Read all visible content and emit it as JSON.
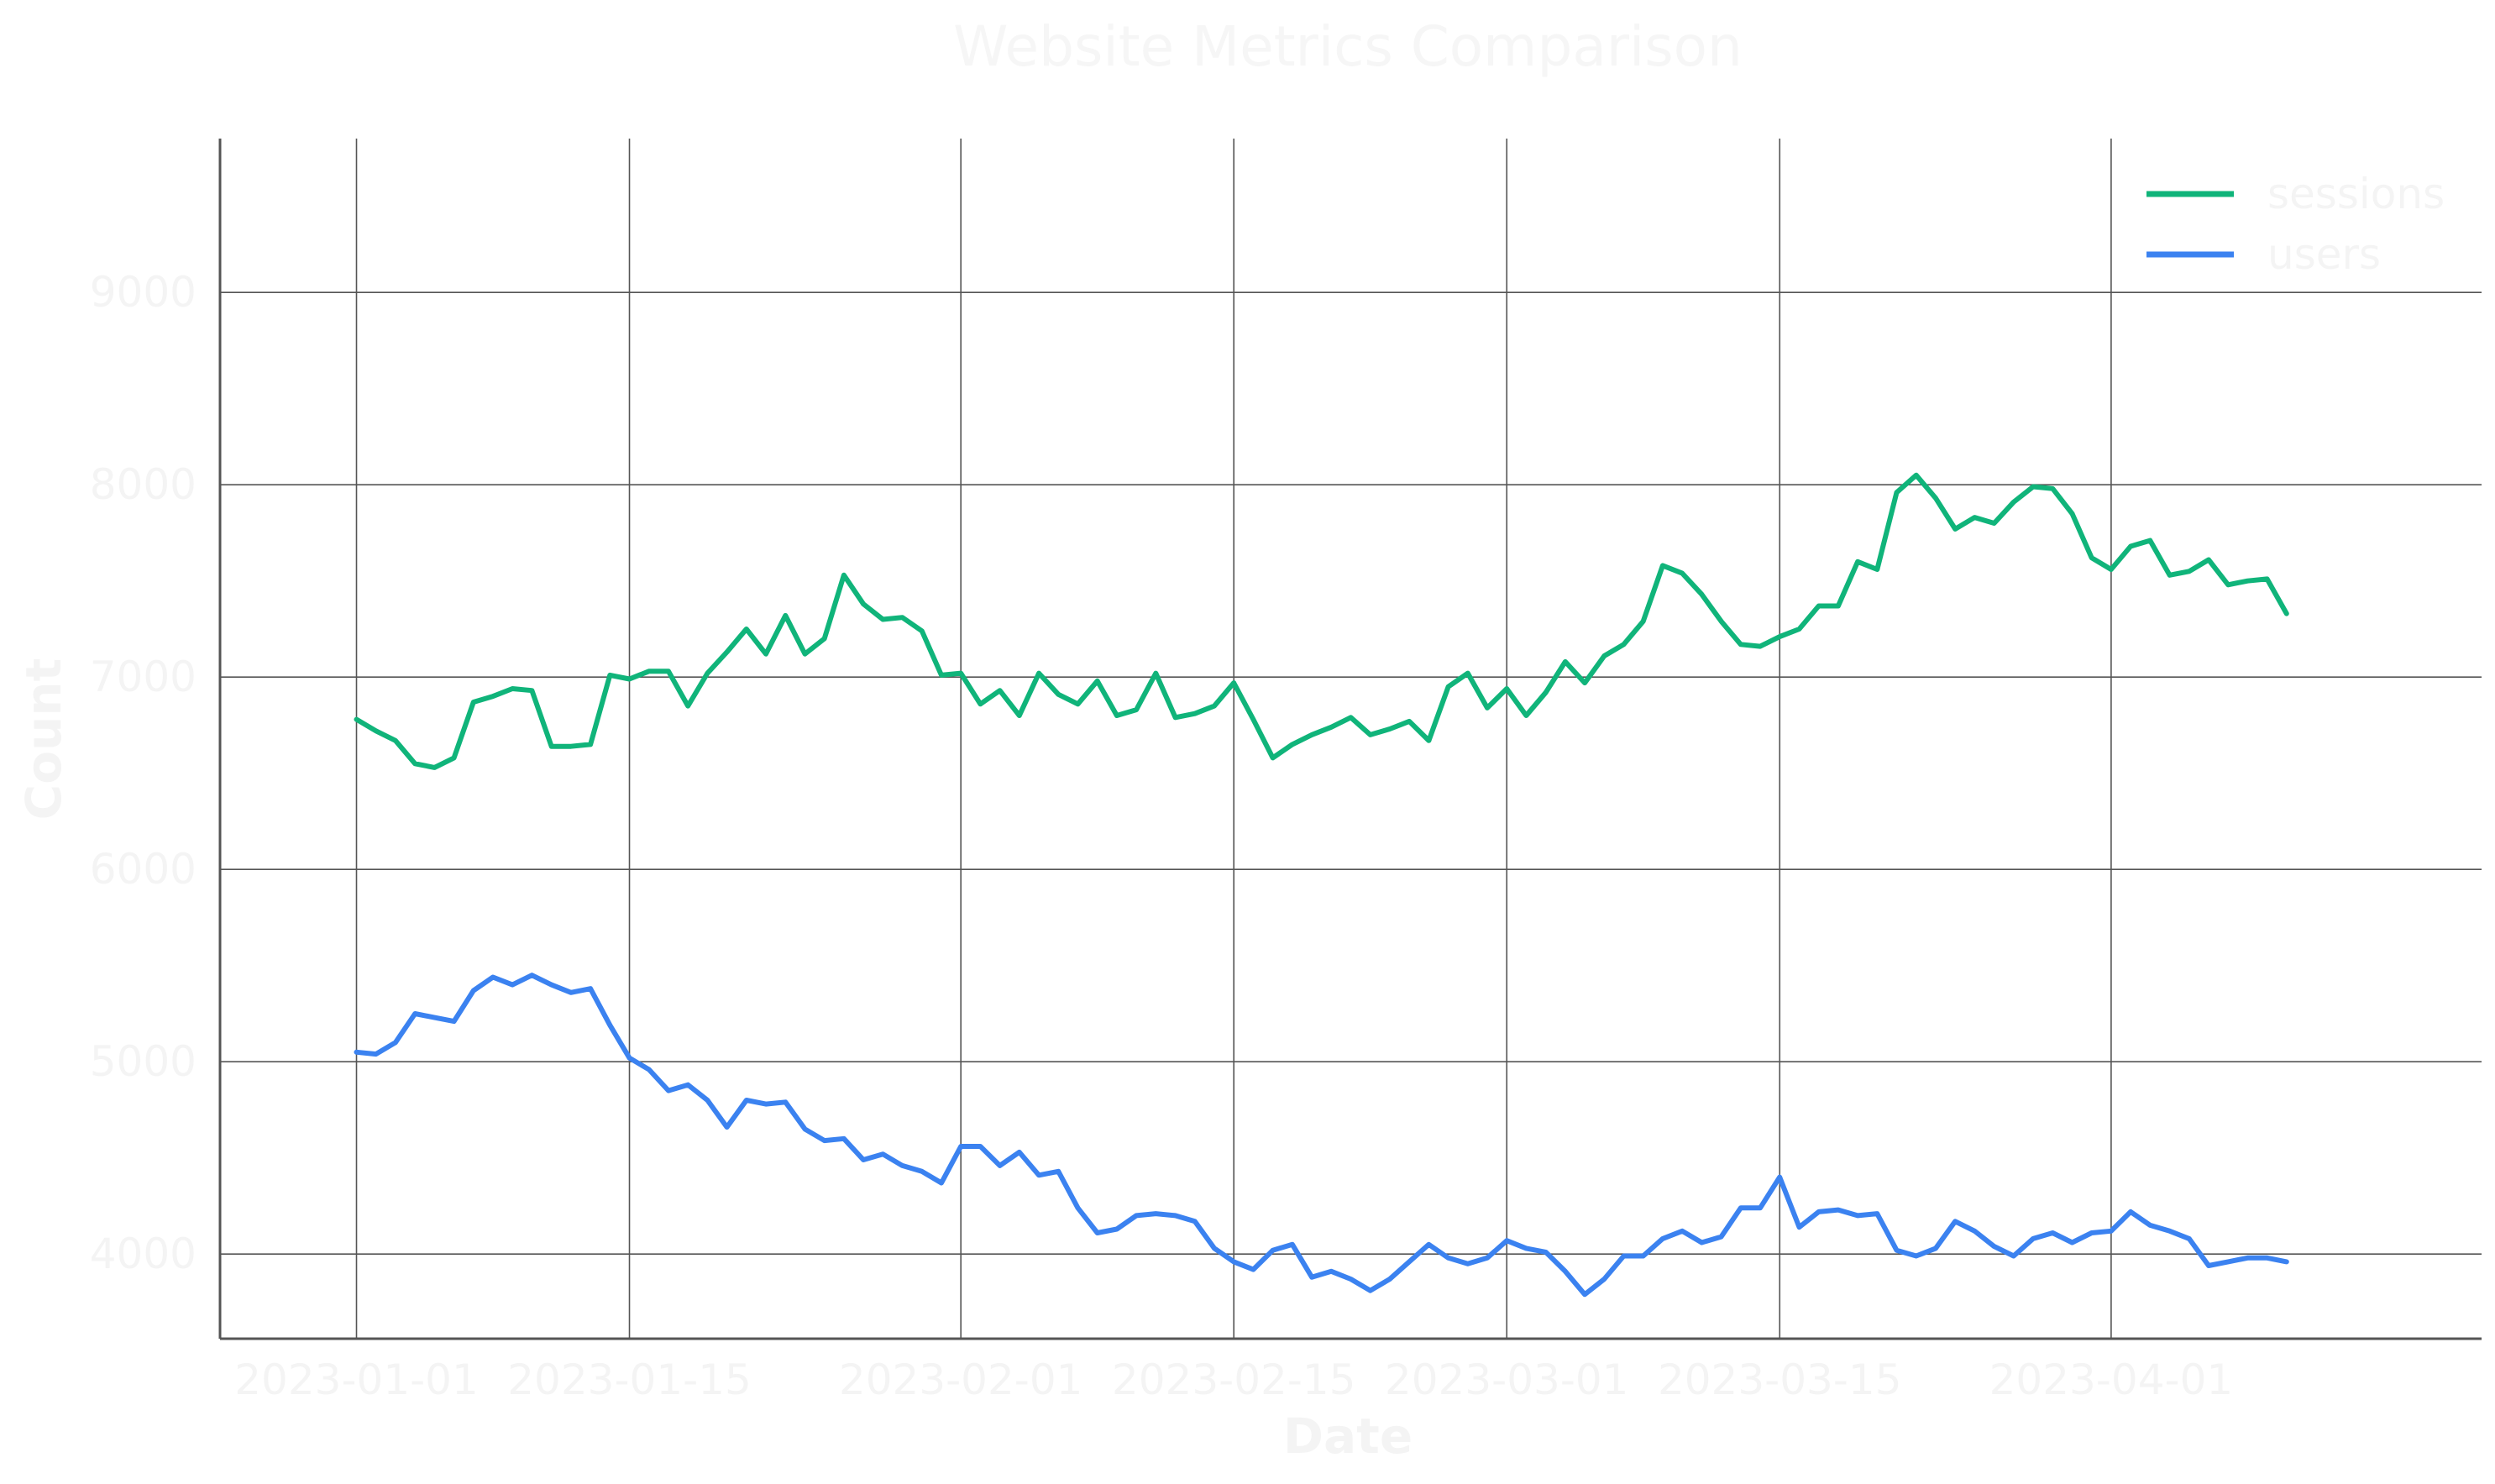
{
  "chart_data": {
    "type": "line",
    "title": "Website Metrics Comparison",
    "xlabel": "Date",
    "ylabel": "Count",
    "xlim": [
      "2022-12-25",
      "2023-04-20"
    ],
    "ylim": [
      3560,
      9800
    ],
    "x_tick_labels": [
      "2023-01-01",
      "2023-01-15",
      "2023-02-01",
      "2023-02-15",
      "2023-03-01",
      "2023-03-15",
      "2023-04-01"
    ],
    "y_ticks": [
      4000,
      5000,
      6000,
      7000,
      8000,
      9000
    ],
    "grid": true,
    "legend_position": "top-right",
    "x_start_date": "2023-01-01",
    "x_end_date": "2023-04-10",
    "series": [
      {
        "name": "sessions",
        "color": "#10b47a",
        "values": [
          6780,
          6720,
          6670,
          6550,
          6530,
          6580,
          6870,
          6900,
          6940,
          6930,
          6640,
          6640,
          6650,
          7010,
          6990,
          7030,
          7030,
          6850,
          7020,
          7130,
          7250,
          7120,
          7320,
          7120,
          7200,
          7530,
          7380,
          7300,
          7310,
          7240,
          7010,
          7020,
          6860,
          6930,
          6800,
          7020,
          6910,
          6860,
          6980,
          6800,
          6830,
          7020,
          6790,
          6810,
          6850,
          6970,
          6780,
          6580,
          6650,
          6700,
          6740,
          6790,
          6700,
          6730,
          6770,
          6670,
          6950,
          7020,
          6840,
          6940,
          6800,
          6920,
          7080,
          6970,
          7110,
          7170,
          7290,
          7580,
          7540,
          7430,
          7290,
          7170,
          7160,
          7210,
          7250,
          7370,
          7370,
          7600,
          7560,
          7960,
          8050,
          7930,
          7770,
          7830,
          7800,
          7910,
          7990,
          7980,
          7850,
          7620,
          7560,
          7680,
          7710,
          7530,
          7550,
          7610,
          7480,
          7500,
          7510,
          7330
        ]
      },
      {
        "name": "users",
        "color": "#3b82f0",
        "values": [
          5050,
          5040,
          5100,
          5250,
          5230,
          5210,
          5370,
          5440,
          5400,
          5450,
          5400,
          5360,
          5380,
          5190,
          5020,
          4960,
          4850,
          4880,
          4800,
          4660,
          4800,
          4780,
          4790,
          4650,
          4590,
          4600,
          4490,
          4520,
          4460,
          4430,
          4370,
          4560,
          4560,
          4460,
          4530,
          4410,
          4430,
          4240,
          4110,
          4130,
          4200,
          4210,
          4200,
          4170,
          4030,
          3960,
          3920,
          4020,
          4050,
          3880,
          3910,
          3870,
          3810,
          3870,
          3960,
          4050,
          3980,
          3950,
          3980,
          4070,
          4030,
          4010,
          3910,
          3790,
          3870,
          3990,
          3990,
          4080,
          4120,
          4060,
          4090,
          4240,
          4240,
          4400,
          4140,
          4220,
          4230,
          4200,
          4210,
          4020,
          3990,
          4030,
          4170,
          4120,
          4040,
          3990,
          4080,
          4110,
          4060,
          4110,
          4120,
          4220,
          4150,
          4120,
          4080,
          3940,
          3960,
          3980,
          3980,
          3960
        ]
      }
    ]
  }
}
